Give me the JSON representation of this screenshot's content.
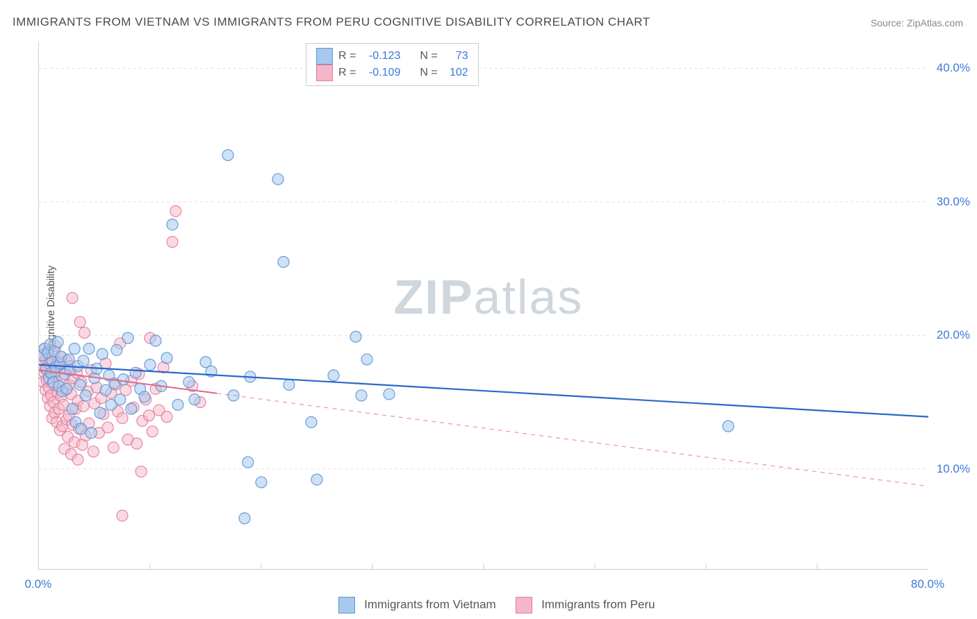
{
  "title": "IMMIGRANTS FROM VIETNAM VS IMMIGRANTS FROM PERU COGNITIVE DISABILITY CORRELATION CHART",
  "source_label": "Source: ZipAtlas.com",
  "y_axis_label": "Cognitive Disability",
  "watermark_zip": "ZIP",
  "watermark_atlas": "atlas",
  "plot": {
    "x_min": 0,
    "x_max": 80,
    "y_min": 2.5,
    "y_max": 42,
    "y_ticks": [
      10,
      20,
      30,
      40
    ],
    "y_tick_labels": [
      "10.0%",
      "20.0%",
      "30.0%",
      "40.0%"
    ],
    "x_ticks": [
      0,
      80
    ],
    "x_tick_labels": [
      "0.0%",
      "80.0%"
    ],
    "x_minor_ticks": [
      10,
      20,
      30,
      40,
      50,
      60,
      70
    ],
    "grid_color": "#e2e2e2",
    "axis_color": "#cccccc",
    "background_color": "#ffffff"
  },
  "series": {
    "vietnam": {
      "label": "Immigrants from Vietnam",
      "r_label": "R =",
      "r_value": "-0.123",
      "n_label": "N =",
      "n_value": "73",
      "fill_color": "#a8c9ed",
      "stroke_color": "#5a94d6",
      "line_color": "#2a67c9",
      "marker_radius": 8,
      "marker_opacity": 0.55,
      "line_width": 2.2,
      "trend": {
        "x1": 0,
        "y1": 17.8,
        "x2": 80,
        "y2": 13.9,
        "solid_until_x": 80
      },
      "points": [
        [
          0.3,
          18.5
        ],
        [
          0.5,
          19.0
        ],
        [
          0.6,
          17.5
        ],
        [
          0.8,
          18.7
        ],
        [
          0.9,
          16.8
        ],
        [
          1.0,
          19.3
        ],
        [
          1.1,
          17.2
        ],
        [
          1.2,
          18.0
        ],
        [
          1.3,
          16.5
        ],
        [
          1.4,
          18.8
        ],
        [
          1.5,
          17.6
        ],
        [
          1.7,
          19.5
        ],
        [
          1.8,
          16.2
        ],
        [
          1.9,
          17.9
        ],
        [
          2.0,
          18.4
        ],
        [
          2.1,
          15.8
        ],
        [
          2.3,
          17.1
        ],
        [
          2.5,
          16.0
        ],
        [
          2.7,
          18.2
        ],
        [
          2.8,
          17.4
        ],
        [
          3.0,
          14.5
        ],
        [
          3.2,
          19.0
        ],
        [
          3.3,
          13.5
        ],
        [
          3.5,
          17.7
        ],
        [
          3.7,
          16.3
        ],
        [
          3.8,
          13.0
        ],
        [
          4.0,
          18.1
        ],
        [
          4.2,
          15.5
        ],
        [
          4.5,
          19.0
        ],
        [
          4.7,
          12.7
        ],
        [
          5.0,
          16.8
        ],
        [
          5.2,
          17.5
        ],
        [
          5.5,
          14.2
        ],
        [
          5.7,
          18.6
        ],
        [
          6.0,
          15.9
        ],
        [
          6.3,
          17.0
        ],
        [
          6.5,
          14.8
        ],
        [
          6.8,
          16.4
        ],
        [
          7.0,
          18.9
        ],
        [
          7.3,
          15.2
        ],
        [
          7.6,
          16.7
        ],
        [
          8.0,
          19.8
        ],
        [
          8.3,
          14.5
        ],
        [
          8.7,
          17.2
        ],
        [
          9.1,
          16.0
        ],
        [
          9.5,
          15.4
        ],
        [
          10.0,
          17.8
        ],
        [
          10.5,
          19.6
        ],
        [
          11.0,
          16.2
        ],
        [
          11.5,
          18.3
        ],
        [
          12.0,
          28.3
        ],
        [
          12.5,
          14.8
        ],
        [
          13.5,
          16.5
        ],
        [
          14.0,
          15.2
        ],
        [
          15.0,
          18.0
        ],
        [
          15.5,
          17.3
        ],
        [
          17.0,
          33.5
        ],
        [
          17.5,
          15.5
        ],
        [
          18.5,
          6.3
        ],
        [
          18.8,
          10.5
        ],
        [
          19.0,
          16.9
        ],
        [
          20.0,
          9.0
        ],
        [
          21.5,
          31.7
        ],
        [
          22.0,
          25.5
        ],
        [
          22.5,
          16.3
        ],
        [
          24.5,
          13.5
        ],
        [
          25.0,
          9.2
        ],
        [
          26.5,
          17.0
        ],
        [
          28.5,
          19.9
        ],
        [
          29.0,
          15.5
        ],
        [
          29.5,
          18.2
        ],
        [
          31.5,
          15.6
        ],
        [
          62.0,
          13.2
        ]
      ]
    },
    "peru": {
      "label": "Immigrants from Peru",
      "r_label": "R =",
      "r_value": "-0.109",
      "n_label": "N =",
      "n_value": "102",
      "fill_color": "#f4b6c8",
      "stroke_color": "#e47a9a",
      "line_color": "#e06688",
      "marker_radius": 8,
      "marker_opacity": 0.5,
      "line_width": 2.0,
      "trend": {
        "x1": 0,
        "y1": 17.4,
        "x2": 80,
        "y2": 8.7,
        "solid_until_x": 16
      },
      "points": [
        [
          0.2,
          17.8
        ],
        [
          0.3,
          18.5
        ],
        [
          0.4,
          16.5
        ],
        [
          0.5,
          17.2
        ],
        [
          0.5,
          19.0
        ],
        [
          0.6,
          15.9
        ],
        [
          0.6,
          18.2
        ],
        [
          0.7,
          16.7
        ],
        [
          0.7,
          17.5
        ],
        [
          0.8,
          15.3
        ],
        [
          0.8,
          18.8
        ],
        [
          0.9,
          16.1
        ],
        [
          0.9,
          17.9
        ],
        [
          1.0,
          14.7
        ],
        [
          1.0,
          18.3
        ],
        [
          1.1,
          15.5
        ],
        [
          1.1,
          17.1
        ],
        [
          1.2,
          13.8
        ],
        [
          1.2,
          16.4
        ],
        [
          1.3,
          18.6
        ],
        [
          1.3,
          15.0
        ],
        [
          1.4,
          17.6
        ],
        [
          1.4,
          14.2
        ],
        [
          1.5,
          16.9
        ],
        [
          1.5,
          19.2
        ],
        [
          1.6,
          13.5
        ],
        [
          1.6,
          17.3
        ],
        [
          1.7,
          15.7
        ],
        [
          1.7,
          18.0
        ],
        [
          1.8,
          14.5
        ],
        [
          1.8,
          16.2
        ],
        [
          1.9,
          17.8
        ],
        [
          1.9,
          12.9
        ],
        [
          2.0,
          15.4
        ],
        [
          2.0,
          18.4
        ],
        [
          2.1,
          13.2
        ],
        [
          2.1,
          16.7
        ],
        [
          2.2,
          14.8
        ],
        [
          2.3,
          17.5
        ],
        [
          2.3,
          11.5
        ],
        [
          2.4,
          15.9
        ],
        [
          2.5,
          13.7
        ],
        [
          2.5,
          18.1
        ],
        [
          2.6,
          12.4
        ],
        [
          2.7,
          16.3
        ],
        [
          2.7,
          14.0
        ],
        [
          2.8,
          17.7
        ],
        [
          2.9,
          11.1
        ],
        [
          2.9,
          15.6
        ],
        [
          3.0,
          13.3
        ],
        [
          3.0,
          22.8
        ],
        [
          3.1,
          16.8
        ],
        [
          3.2,
          12.0
        ],
        [
          3.3,
          14.5
        ],
        [
          3.4,
          17.2
        ],
        [
          3.5,
          10.7
        ],
        [
          3.5,
          15.1
        ],
        [
          3.6,
          13.0
        ],
        [
          3.7,
          21.0
        ],
        [
          3.8,
          16.5
        ],
        [
          3.9,
          11.8
        ],
        [
          4.0,
          14.7
        ],
        [
          4.1,
          20.2
        ],
        [
          4.2,
          12.5
        ],
        [
          4.4,
          15.8
        ],
        [
          4.5,
          13.4
        ],
        [
          4.7,
          17.4
        ],
        [
          4.9,
          11.3
        ],
        [
          5.0,
          14.9
        ],
        [
          5.2,
          16.1
        ],
        [
          5.4,
          12.7
        ],
        [
          5.6,
          15.3
        ],
        [
          5.8,
          14.1
        ],
        [
          6.0,
          17.9
        ],
        [
          6.2,
          13.1
        ],
        [
          6.5,
          15.7
        ],
        [
          6.7,
          11.6
        ],
        [
          6.9,
          16.3
        ],
        [
          7.1,
          14.3
        ],
        [
          7.3,
          19.4
        ],
        [
          7.5,
          13.8
        ],
        [
          7.8,
          15.9
        ],
        [
          8.0,
          12.2
        ],
        [
          8.3,
          16.6
        ],
        [
          8.5,
          14.6
        ],
        [
          8.8,
          11.9
        ],
        [
          9.0,
          17.1
        ],
        [
          9.3,
          13.6
        ],
        [
          9.6,
          15.2
        ],
        [
          9.9,
          14.0
        ],
        [
          10.2,
          12.8
        ],
        [
          10.5,
          16.0
        ],
        [
          10.8,
          14.4
        ],
        [
          11.2,
          17.6
        ],
        [
          11.5,
          13.9
        ],
        [
          7.5,
          6.5
        ],
        [
          9.2,
          9.8
        ],
        [
          10.0,
          19.8
        ],
        [
          12.0,
          27.0
        ],
        [
          12.3,
          29.3
        ],
        [
          14.5,
          15.0
        ],
        [
          13.8,
          16.2
        ]
      ]
    }
  },
  "legend_box": {
    "border_color": "#cccccc"
  },
  "bottom_legend": {
    "vietnam_label": "Immigrants from Vietnam",
    "peru_label": "Immigrants from Peru"
  }
}
